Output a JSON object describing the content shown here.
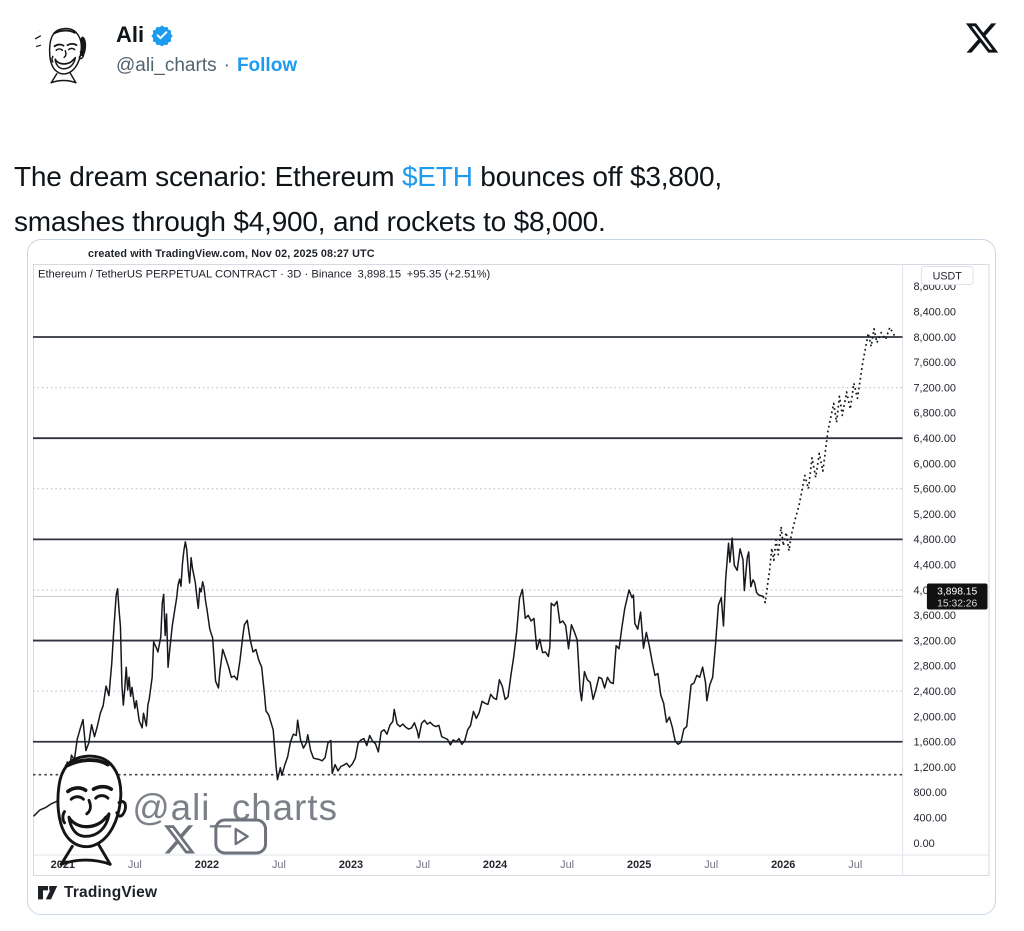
{
  "tweet": {
    "author": "Ali",
    "handle": "@ali_charts",
    "dot": "·",
    "follow": "Follow",
    "body_line1": [
      {
        "t": "The dream scenario: Ethereum "
      },
      {
        "t": "$ETH",
        "link": true
      },
      {
        "t": " bounces off $3,800,"
      }
    ],
    "body_line2": [
      {
        "t": "smashes through $4,900, and rockets to $8,000."
      }
    ]
  },
  "colors": {
    "accent_blue": "#1d9bf0",
    "text_dark": "#0f1419",
    "text_gray": "#536471",
    "chart_text": "#23262f",
    "chart_gray_text": "#70737e",
    "line": "#16181d",
    "level_line": "#2e323c",
    "dotted_grid": "#b8bbc4",
    "watermark_gray": "#7c8089",
    "badge_bg": "#111111",
    "card_border": "#c9d7e4"
  },
  "chart_data": {
    "type": "line",
    "caption": "created with TradingView.com, Nov 02, 2025 08:27 UTC",
    "title": "Ethereum / TetherUS PERPETUAL CONTRACT · 3D · Binance",
    "last_price": "3,898.15",
    "change": "+95.35 (+2.51%)",
    "countdown": "15:32:26",
    "unit": "USDT",
    "watermark_handle": "@ali_charts",
    "tv_label": "TradingView",
    "legend_position": "top-left",
    "grid": "horizontal-only",
    "xlim": [
      2020.793,
      2026.828
    ],
    "ylim": [
      -190,
      9154
    ],
    "y_ticks": [
      8800,
      8400,
      8000,
      7600,
      7200,
      6800,
      6400,
      6000,
      5600,
      5200,
      4800,
      4400,
      4000,
      3600,
      3200,
      2800,
      2400,
      2000,
      1600,
      1200,
      800,
      400,
      0
    ],
    "x_ticks": [
      {
        "label": "2021",
        "t": 2021.0,
        "major": true
      },
      {
        "label": "Jul",
        "t": 2021.5,
        "major": false
      },
      {
        "label": "2022",
        "t": 2022.0,
        "major": true
      },
      {
        "label": "Jul",
        "t": 2022.5,
        "major": false
      },
      {
        "label": "2023",
        "t": 2023.0,
        "major": true
      },
      {
        "label": "Jul",
        "t": 2023.5,
        "major": false
      },
      {
        "label": "2024",
        "t": 2024.0,
        "major": true
      },
      {
        "label": "Jul",
        "t": 2024.5,
        "major": false
      },
      {
        "label": "2025",
        "t": 2025.0,
        "major": true
      },
      {
        "label": "Jul",
        "t": 2025.5,
        "major": false
      },
      {
        "label": "2026",
        "t": 2026.0,
        "major": true
      },
      {
        "label": "Jul",
        "t": 2026.5,
        "major": false
      }
    ],
    "levels_solid": [
      8000,
      6400,
      4800,
      3200,
      1600
    ],
    "levels_dotted": [
      7200,
      5600,
      4000,
      2400
    ],
    "support_dotted": 1080,
    "current_price": 3898.15,
    "series": [
      [
        2020.8,
        430
      ],
      [
        2020.84,
        520
      ],
      [
        2020.88,
        560
      ],
      [
        2020.92,
        620
      ],
      [
        2020.96,
        660
      ],
      [
        2021.0,
        740
      ],
      [
        2021.02,
        1150
      ],
      [
        2021.03,
        1280
      ],
      [
        2021.04,
        1090
      ],
      [
        2021.06,
        1390
      ],
      [
        2021.08,
        1310
      ],
      [
        2021.1,
        1640
      ],
      [
        2021.12,
        1800
      ],
      [
        2021.14,
        1950
      ],
      [
        2021.16,
        1460
      ],
      [
        2021.18,
        1580
      ],
      [
        2021.2,
        1870
      ],
      [
        2021.22,
        1680
      ],
      [
        2021.24,
        1850
      ],
      [
        2021.26,
        2050
      ],
      [
        2021.28,
        2170
      ],
      [
        2021.3,
        2480
      ],
      [
        2021.32,
        2330
      ],
      [
        2021.34,
        2850
      ],
      [
        2021.35,
        3250
      ],
      [
        2021.36,
        3580
      ],
      [
        2021.37,
        3920
      ],
      [
        2021.38,
        4020
      ],
      [
        2021.39,
        3680
      ],
      [
        2021.4,
        3420
      ],
      [
        2021.41,
        2480
      ],
      [
        2021.42,
        2180
      ],
      [
        2021.43,
        2450
      ],
      [
        2021.44,
        2780
      ],
      [
        2021.45,
        2420
      ],
      [
        2021.46,
        2620
      ],
      [
        2021.47,
        2320
      ],
      [
        2021.48,
        2460
      ],
      [
        2021.5,
        2130
      ],
      [
        2021.51,
        2250
      ],
      [
        2021.53,
        1930
      ],
      [
        2021.55,
        1820
      ],
      [
        2021.56,
        2050
      ],
      [
        2021.58,
        1850
      ],
      [
        2021.59,
        2180
      ],
      [
        2021.6,
        2280
      ],
      [
        2021.62,
        2620
      ],
      [
        2021.63,
        3180
      ],
      [
        2021.65,
        3080
      ],
      [
        2021.66,
        3020
      ],
      [
        2021.68,
        3260
      ],
      [
        2021.69,
        3800
      ],
      [
        2021.7,
        3930
      ],
      [
        2021.71,
        3280
      ],
      [
        2021.72,
        3620
      ],
      [
        2021.73,
        2780
      ],
      [
        2021.74,
        3010
      ],
      [
        2021.76,
        3440
      ],
      [
        2021.77,
        3590
      ],
      [
        2021.79,
        3880
      ],
      [
        2021.8,
        4080
      ],
      [
        2021.81,
        4170
      ],
      [
        2021.82,
        4060
      ],
      [
        2021.83,
        4420
      ],
      [
        2021.84,
        4620
      ],
      [
        2021.85,
        4760
      ],
      [
        2021.86,
        4640
      ],
      [
        2021.87,
        4320
      ],
      [
        2021.88,
        4110
      ],
      [
        2021.89,
        4510
      ],
      [
        2021.9,
        4340
      ],
      [
        2021.92,
        4110
      ],
      [
        2021.93,
        3890
      ],
      [
        2021.94,
        3710
      ],
      [
        2021.95,
        4030
      ],
      [
        2021.96,
        3970
      ],
      [
        2021.97,
        4130
      ],
      [
        2021.98,
        4040
      ],
      [
        2021.99,
        3830
      ],
      [
        2022.0,
        3700
      ],
      [
        2022.02,
        3380
      ],
      [
        2022.04,
        3240
      ],
      [
        2022.06,
        2560
      ],
      [
        2022.08,
        2450
      ],
      [
        2022.09,
        2700
      ],
      [
        2022.11,
        3060
      ],
      [
        2022.13,
        2930
      ],
      [
        2022.15,
        2790
      ],
      [
        2022.17,
        2620
      ],
      [
        2022.19,
        2640
      ],
      [
        2022.21,
        2580
      ],
      [
        2022.23,
        2890
      ],
      [
        2022.25,
        3280
      ],
      [
        2022.26,
        3450
      ],
      [
        2022.28,
        3520
      ],
      [
        2022.3,
        3220
      ],
      [
        2022.32,
        3020
      ],
      [
        2022.34,
        3060
      ],
      [
        2022.36,
        2890
      ],
      [
        2022.38,
        2780
      ],
      [
        2022.4,
        2340
      ],
      [
        2022.41,
        2090
      ],
      [
        2022.43,
        2020
      ],
      [
        2022.44,
        1940
      ],
      [
        2022.46,
        1790
      ],
      [
        2022.47,
        1510
      ],
      [
        2022.48,
        1210
      ],
      [
        2022.49,
        1000
      ],
      [
        2022.51,
        1190
      ],
      [
        2022.52,
        1070
      ],
      [
        2022.54,
        1230
      ],
      [
        2022.56,
        1360
      ],
      [
        2022.58,
        1600
      ],
      [
        2022.6,
        1720
      ],
      [
        2022.62,
        1700
      ],
      [
        2022.63,
        1940
      ],
      [
        2022.65,
        1630
      ],
      [
        2022.67,
        1500
      ],
      [
        2022.69,
        1580
      ],
      [
        2022.7,
        1710
      ],
      [
        2022.72,
        1460
      ],
      [
        2022.74,
        1340
      ],
      [
        2022.76,
        1330
      ],
      [
        2022.78,
        1320
      ],
      [
        2022.8,
        1300
      ],
      [
        2022.82,
        1350
      ],
      [
        2022.84,
        1580
      ],
      [
        2022.86,
        1620
      ],
      [
        2022.87,
        1100
      ],
      [
        2022.89,
        1240
      ],
      [
        2022.91,
        1140
      ],
      [
        2022.93,
        1210
      ],
      [
        2022.95,
        1230
      ],
      [
        2022.97,
        1260
      ],
      [
        2022.99,
        1200
      ],
      [
        2023.01,
        1250
      ],
      [
        2023.03,
        1340
      ],
      [
        2023.05,
        1580
      ],
      [
        2023.07,
        1630
      ],
      [
        2023.09,
        1650
      ],
      [
        2023.11,
        1540
      ],
      [
        2023.13,
        1700
      ],
      [
        2023.15,
        1610
      ],
      [
        2023.17,
        1570
      ],
      [
        2023.19,
        1440
      ],
      [
        2023.21,
        1760
      ],
      [
        2023.23,
        1790
      ],
      [
        2023.25,
        1720
      ],
      [
        2023.27,
        1860
      ],
      [
        2023.29,
        1920
      ],
      [
        2023.3,
        2110
      ],
      [
        2023.32,
        1880
      ],
      [
        2023.34,
        1840
      ],
      [
        2023.36,
        1880
      ],
      [
        2023.38,
        1830
      ],
      [
        2023.4,
        1800
      ],
      [
        2023.42,
        1820
      ],
      [
        2023.44,
        1900
      ],
      [
        2023.46,
        1770
      ],
      [
        2023.47,
        1660
      ],
      [
        2023.49,
        1890
      ],
      [
        2023.51,
        1940
      ],
      [
        2023.53,
        1880
      ],
      [
        2023.55,
        1910
      ],
      [
        2023.57,
        1860
      ],
      [
        2023.59,
        1840
      ],
      [
        2023.61,
        1860
      ],
      [
        2023.63,
        1680
      ],
      [
        2023.65,
        1660
      ],
      [
        2023.67,
        1640
      ],
      [
        2023.69,
        1550
      ],
      [
        2023.71,
        1630
      ],
      [
        2023.73,
        1600
      ],
      [
        2023.75,
        1650
      ],
      [
        2023.77,
        1560
      ],
      [
        2023.79,
        1620
      ],
      [
        2023.81,
        1790
      ],
      [
        2023.83,
        1860
      ],
      [
        2023.85,
        2080
      ],
      [
        2023.87,
        1970
      ],
      [
        2023.89,
        2060
      ],
      [
        2023.91,
        2240
      ],
      [
        2023.93,
        2210
      ],
      [
        2023.95,
        2190
      ],
      [
        2023.97,
        2350
      ],
      [
        2023.99,
        2290
      ],
      [
        2024.01,
        2270
      ],
      [
        2024.03,
        2580
      ],
      [
        2024.05,
        2480
      ],
      [
        2024.07,
        2270
      ],
      [
        2024.09,
        2310
      ],
      [
        2024.11,
        2650
      ],
      [
        2024.13,
        2950
      ],
      [
        2024.15,
        3340
      ],
      [
        2024.17,
        3870
      ],
      [
        2024.19,
        4010
      ],
      [
        2024.21,
        3550
      ],
      [
        2024.23,
        3600
      ],
      [
        2024.25,
        3510
      ],
      [
        2024.27,
        3550
      ],
      [
        2024.29,
        3060
      ],
      [
        2024.31,
        3220
      ],
      [
        2024.33,
        3010
      ],
      [
        2024.35,
        3020
      ],
      [
        2024.37,
        2950
      ],
      [
        2024.38,
        3100
      ],
      [
        2024.39,
        3790
      ],
      [
        2024.41,
        3750
      ],
      [
        2024.43,
        3820
      ],
      [
        2024.45,
        3480
      ],
      [
        2024.47,
        3510
      ],
      [
        2024.49,
        3440
      ],
      [
        2024.51,
        3070
      ],
      [
        2024.53,
        3450
      ],
      [
        2024.55,
        3340
      ],
      [
        2024.57,
        3210
      ],
      [
        2024.59,
        2420
      ],
      [
        2024.6,
        2250
      ],
      [
        2024.62,
        2710
      ],
      [
        2024.64,
        2580
      ],
      [
        2024.66,
        2540
      ],
      [
        2024.68,
        2270
      ],
      [
        2024.7,
        2430
      ],
      [
        2024.72,
        2620
      ],
      [
        2024.74,
        2600
      ],
      [
        2024.76,
        2450
      ],
      [
        2024.78,
        2620
      ],
      [
        2024.8,
        2540
      ],
      [
        2024.82,
        2520
      ],
      [
        2024.84,
        3120
      ],
      [
        2024.86,
        3070
      ],
      [
        2024.88,
        3410
      ],
      [
        2024.9,
        3710
      ],
      [
        2024.93,
        4000
      ],
      [
        2024.95,
        3880
      ],
      [
        2024.96,
        3920
      ],
      [
        2024.97,
        3470
      ],
      [
        2024.99,
        3380
      ],
      [
        2025.01,
        3650
      ],
      [
        2025.03,
        3080
      ],
      [
        2025.05,
        3330
      ],
      [
        2025.07,
        3120
      ],
      [
        2025.09,
        2870
      ],
      [
        2025.11,
        2650
      ],
      [
        2025.13,
        2680
      ],
      [
        2025.15,
        2340
      ],
      [
        2025.17,
        2210
      ],
      [
        2025.19,
        1910
      ],
      [
        2025.21,
        1990
      ],
      [
        2025.23,
        1830
      ],
      [
        2025.25,
        1610
      ],
      [
        2025.27,
        1560
      ],
      [
        2025.29,
        1590
      ],
      [
        2025.31,
        1800
      ],
      [
        2025.33,
        1840
      ],
      [
        2025.36,
        2500
      ],
      [
        2025.38,
        2530
      ],
      [
        2025.4,
        2650
      ],
      [
        2025.42,
        2620
      ],
      [
        2025.44,
        2780
      ],
      [
        2025.46,
        2540
      ],
      [
        2025.47,
        2250
      ],
      [
        2025.49,
        2500
      ],
      [
        2025.51,
        2620
      ],
      [
        2025.53,
        3140
      ],
      [
        2025.55,
        3760
      ],
      [
        2025.57,
        3880
      ],
      [
        2025.585,
        3430
      ],
      [
        2025.6,
        4170
      ],
      [
        2025.62,
        4740
      ],
      [
        2025.63,
        4440
      ],
      [
        2025.645,
        4820
      ],
      [
        2025.66,
        4390
      ],
      [
        2025.68,
        4310
      ],
      [
        2025.7,
        4650
      ],
      [
        2025.72,
        4480
      ],
      [
        2025.73,
        3990
      ],
      [
        2025.75,
        4510
      ],
      [
        2025.76,
        4600
      ],
      [
        2025.775,
        4050
      ],
      [
        2025.79,
        4160
      ],
      [
        2025.8,
        4120
      ],
      [
        2025.815,
        3960
      ],
      [
        2025.83,
        3920
      ],
      [
        2025.86,
        3898
      ]
    ],
    "projection": [
      [
        2025.86,
        3898
      ],
      [
        2025.875,
        3800
      ],
      [
        2025.89,
        4060
      ],
      [
        2025.905,
        4310
      ],
      [
        2025.92,
        4660
      ],
      [
        2025.935,
        4470
      ],
      [
        2025.95,
        4790
      ],
      [
        2025.965,
        4560
      ],
      [
        2025.985,
        5000
      ],
      [
        2026.0,
        4700
      ],
      [
        2026.02,
        4910
      ],
      [
        2026.04,
        4620
      ],
      [
        2026.055,
        4860
      ],
      [
        2026.08,
        5090
      ],
      [
        2026.11,
        5340
      ],
      [
        2026.15,
        5810
      ],
      [
        2026.175,
        5600
      ],
      [
        2026.2,
        6090
      ],
      [
        2026.225,
        5780
      ],
      [
        2026.25,
        6160
      ],
      [
        2026.275,
        5880
      ],
      [
        2026.31,
        6510
      ],
      [
        2026.35,
        6950
      ],
      [
        2026.37,
        6650
      ],
      [
        2026.39,
        7060
      ],
      [
        2026.41,
        6760
      ],
      [
        2026.44,
        7130
      ],
      [
        2026.465,
        6860
      ],
      [
        2026.49,
        7270
      ],
      [
        2026.515,
        7030
      ],
      [
        2026.55,
        7570
      ],
      [
        2026.59,
        8060
      ],
      [
        2026.61,
        7850
      ],
      [
        2026.63,
        8130
      ],
      [
        2026.65,
        7910
      ],
      [
        2026.68,
        8070
      ],
      [
        2026.71,
        7960
      ],
      [
        2026.74,
        8150
      ],
      [
        2026.77,
        8030
      ],
      [
        2026.79,
        8010
      ]
    ]
  }
}
